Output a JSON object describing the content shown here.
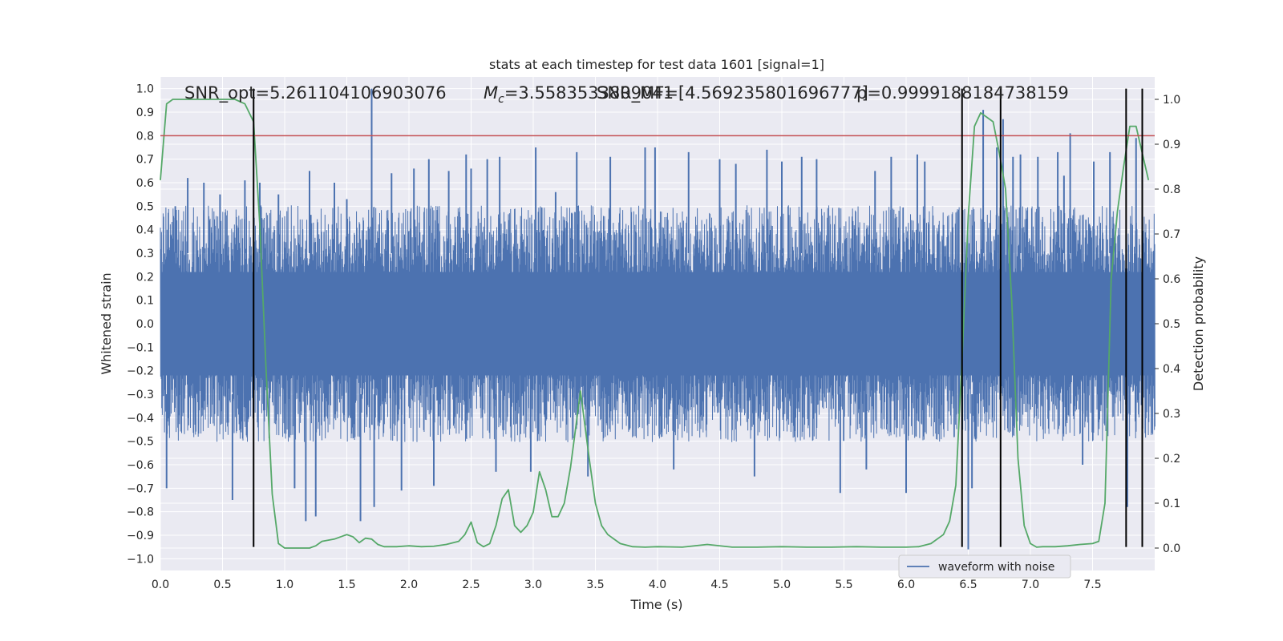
{
  "chart_data": {
    "type": "line",
    "title": "stats at each timestep for test data 1601 [signal=1]",
    "xlabel": "Time (s)",
    "ylabel": "Whitened strain",
    "ylabel_right": "Detection probability",
    "xlim": [
      0.0,
      8.0
    ],
    "ylim": [
      -1.05,
      1.05
    ],
    "ylim_right": [
      -0.05,
      1.05
    ],
    "xticks": [
      0.0,
      0.5,
      1.0,
      1.5,
      2.0,
      2.5,
      3.0,
      3.5,
      4.0,
      4.5,
      5.0,
      5.5,
      6.0,
      6.5,
      7.0,
      7.5
    ],
    "xtick_labels": [
      "0.0",
      "0.5",
      "1.0",
      "1.5",
      "2.0",
      "2.5",
      "3.0",
      "3.5",
      "4.0",
      "4.5",
      "5.0",
      "5.5",
      "6.0",
      "6.5",
      "7.0",
      "7.5"
    ],
    "yticks": [
      -1.0,
      -0.9,
      -0.8,
      -0.7,
      -0.6,
      -0.5,
      -0.4,
      -0.3,
      -0.2,
      -0.1,
      0.0,
      0.1,
      0.2,
      0.3,
      0.4,
      0.5,
      0.6,
      0.7,
      0.8,
      0.9,
      1.0
    ],
    "ytick_labels": [
      "−1.0",
      "−0.9",
      "−0.8",
      "−0.7",
      "−0.6",
      "−0.5",
      "−0.4",
      "−0.3",
      "−0.2",
      "−0.1",
      "0.0",
      "0.1",
      "0.2",
      "0.3",
      "0.4",
      "0.5",
      "0.6",
      "0.7",
      "0.8",
      "0.9",
      "1.0"
    ],
    "yticks_right": [
      0.0,
      0.1,
      0.2,
      0.3,
      0.4,
      0.5,
      0.6,
      0.7,
      0.8,
      0.9,
      1.0
    ],
    "ytick_labels_right": [
      "0.0",
      "0.1",
      "0.2",
      "0.3",
      "0.4",
      "0.5",
      "0.6",
      "0.7",
      "0.8",
      "0.9",
      "1.0"
    ],
    "grid": true,
    "legend": {
      "entries": [
        "waveform with noise"
      ],
      "placement": "lower-right"
    },
    "colors": {
      "background": "#eaeaf2",
      "waveform": "#4c72b0",
      "probability": "#55a868",
      "threshold": "#c44e52",
      "markers": "#000000",
      "grid": "#ffffff"
    },
    "annotations": [
      {
        "id": "snr-opt",
        "text": "SNR_opt=5.261104106903076"
      },
      {
        "id": "chirp-mass",
        "text": "Mc=3.5583533809041"
      },
      {
        "id": "snr-mf",
        "text": "SNR_MF=[4.569235801696777]"
      },
      {
        "id": "pval",
        "text": "p=0.9999188184738159"
      }
    ],
    "series": [
      {
        "name": "waveform with noise",
        "axis": "left",
        "kind": "noise-band",
        "typical_amplitude": 0.42,
        "spikes": [
          [
            0.05,
            -0.7
          ],
          [
            0.12,
            0.5
          ],
          [
            0.22,
            0.62
          ],
          [
            0.35,
            0.6
          ],
          [
            0.48,
            0.55
          ],
          [
            0.58,
            -0.75
          ],
          [
            0.68,
            0.61
          ],
          [
            0.8,
            0.6
          ],
          [
            0.95,
            0.55
          ],
          [
            1.08,
            -0.7
          ],
          [
            1.17,
            -0.84
          ],
          [
            1.2,
            0.65
          ],
          [
            1.25,
            -0.82
          ],
          [
            1.4,
            0.6
          ],
          [
            1.5,
            0.53
          ],
          [
            1.61,
            -0.84
          ],
          [
            1.7,
            1.0
          ],
          [
            1.72,
            -0.78
          ],
          [
            1.86,
            0.64
          ],
          [
            1.94,
            -0.71
          ],
          [
            2.04,
            0.66
          ],
          [
            2.16,
            0.7
          ],
          [
            2.2,
            -0.69
          ],
          [
            2.32,
            0.65
          ],
          [
            2.46,
            0.72
          ],
          [
            2.5,
            0.66
          ],
          [
            2.63,
            0.7
          ],
          [
            2.7,
            -0.63
          ],
          [
            2.73,
            0.71
          ],
          [
            2.98,
            -0.63
          ],
          [
            3.02,
            0.75
          ],
          [
            3.18,
            0.56
          ],
          [
            3.35,
            0.73
          ],
          [
            3.44,
            -0.65
          ],
          [
            3.62,
            0.71
          ],
          [
            3.9,
            0.75
          ],
          [
            3.98,
            0.75
          ],
          [
            4.13,
            -0.62
          ],
          [
            4.25,
            0.73
          ],
          [
            4.5,
            0.7
          ],
          [
            4.63,
            0.68
          ],
          [
            4.78,
            -0.65
          ],
          [
            4.88,
            0.74
          ],
          [
            5.0,
            0.69
          ],
          [
            5.16,
            0.71
          ],
          [
            5.28,
            0.7
          ],
          [
            5.47,
            -0.72
          ],
          [
            5.68,
            -0.62
          ],
          [
            5.75,
            0.65
          ],
          [
            5.88,
            0.71
          ],
          [
            6.0,
            -0.72
          ],
          [
            6.09,
            0.72
          ],
          [
            6.15,
            0.69
          ],
          [
            6.3,
            0.42
          ],
          [
            6.5,
            -0.96
          ],
          [
            6.53,
            -0.7
          ],
          [
            6.62,
            0.91
          ],
          [
            6.73,
            0.75
          ],
          [
            6.78,
            0.87
          ],
          [
            6.86,
            0.71
          ],
          [
            6.92,
            0.72
          ],
          [
            7.06,
            0.71
          ],
          [
            7.22,
            0.73
          ],
          [
            7.27,
            0.63
          ],
          [
            7.32,
            0.81
          ],
          [
            7.42,
            -0.6
          ],
          [
            7.51,
            0.69
          ],
          [
            7.64,
            0.73
          ],
          [
            7.78,
            -0.78
          ],
          [
            7.85,
            0.79
          ],
          [
            7.9,
            -0.76
          ]
        ]
      },
      {
        "name": "",
        "axis": "right",
        "kind": "line",
        "x": [
          0.0,
          0.05,
          0.1,
          0.2,
          0.3,
          0.4,
          0.5,
          0.6,
          0.68,
          0.75,
          0.8,
          0.85,
          0.9,
          0.95,
          1.0,
          1.1,
          1.2,
          1.25,
          1.3,
          1.4,
          1.5,
          1.55,
          1.6,
          1.65,
          1.7,
          1.75,
          1.8,
          1.9,
          2.0,
          2.1,
          2.2,
          2.3,
          2.4,
          2.45,
          2.5,
          2.55,
          2.6,
          2.65,
          2.7,
          2.75,
          2.8,
          2.85,
          2.9,
          2.95,
          3.0,
          3.05,
          3.1,
          3.15,
          3.2,
          3.25,
          3.3,
          3.38,
          3.45,
          3.5,
          3.55,
          3.6,
          3.7,
          3.8,
          3.9,
          4.0,
          4.2,
          4.4,
          4.6,
          4.8,
          5.0,
          5.2,
          5.4,
          5.6,
          5.8,
          6.0,
          6.1,
          6.2,
          6.3,
          6.35,
          6.4,
          6.45,
          6.5,
          6.55,
          6.6,
          6.65,
          6.7,
          6.75,
          6.8,
          6.85,
          6.9,
          6.95,
          7.0,
          7.05,
          7.1,
          7.2,
          7.3,
          7.4,
          7.5,
          7.55,
          7.6,
          7.65,
          7.7,
          7.75,
          7.8,
          7.85,
          7.9,
          7.95
        ],
        "y": [
          0.82,
          0.99,
          1.0,
          1.0,
          1.0,
          1.0,
          1.0,
          1.0,
          0.99,
          0.95,
          0.72,
          0.4,
          0.12,
          0.01,
          0.0,
          0.0,
          0.0,
          0.005,
          0.015,
          0.02,
          0.03,
          0.025,
          0.012,
          0.022,
          0.02,
          0.008,
          0.003,
          0.003,
          0.005,
          0.003,
          0.004,
          0.008,
          0.015,
          0.03,
          0.058,
          0.012,
          0.003,
          0.01,
          0.05,
          0.11,
          0.13,
          0.05,
          0.035,
          0.05,
          0.08,
          0.17,
          0.13,
          0.07,
          0.07,
          0.1,
          0.18,
          0.35,
          0.2,
          0.1,
          0.05,
          0.03,
          0.01,
          0.003,
          0.002,
          0.003,
          0.002,
          0.008,
          0.002,
          0.002,
          0.003,
          0.002,
          0.002,
          0.003,
          0.002,
          0.002,
          0.003,
          0.01,
          0.03,
          0.06,
          0.14,
          0.42,
          0.74,
          0.94,
          0.97,
          0.96,
          0.95,
          0.88,
          0.8,
          0.55,
          0.2,
          0.05,
          0.01,
          0.002,
          0.003,
          0.003,
          0.005,
          0.008,
          0.01,
          0.015,
          0.1,
          0.6,
          0.75,
          0.85,
          0.94,
          0.94,
          0.88,
          0.82
        ]
      },
      {
        "name": "",
        "axis": "left",
        "kind": "hline",
        "y": 0.8
      },
      {
        "name": "",
        "axis": "left",
        "kind": "vlines",
        "x": [
          0.75,
          6.45,
          6.76,
          7.77,
          7.9
        ],
        "y_range": [
          -0.95,
          1.0
        ]
      }
    ]
  }
}
